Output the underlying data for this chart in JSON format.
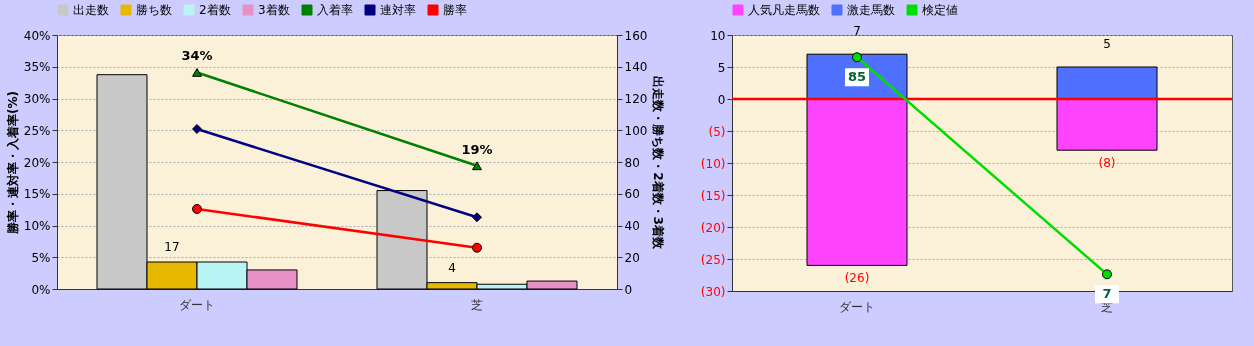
{
  "chart_data": [
    {
      "type": "bar",
      "categories": [
        "ダート",
        "芝"
      ],
      "ylabel": "勝率・連対率・入着率(%)",
      "y2label": "出走数・勝ち数・2着数・3着数",
      "ylim": [
        0,
        40
      ],
      "yticks": [
        {
          "value": 0,
          "label": "0%"
        },
        {
          "value": 5,
          "label": "5%"
        },
        {
          "value": 10,
          "label": "10%"
        },
        {
          "value": 15,
          "label": "15%"
        },
        {
          "value": 20,
          "label": "20%"
        },
        {
          "value": 25,
          "label": "25%"
        },
        {
          "value": 30,
          "label": "30%"
        },
        {
          "value": 35,
          "label": "35%"
        },
        {
          "value": 40,
          "label": "40%"
        }
      ],
      "y2lim": [
        0,
        160
      ],
      "y2ticks": [
        0,
        20,
        40,
        60,
        80,
        100,
        120,
        140,
        160
      ],
      "grid": "y",
      "legend": "top",
      "series": [
        {
          "name": "出走数",
          "color": "#c8c8c8",
          "axis": "y2",
          "values": [
            135,
            62
          ]
        },
        {
          "name": "勝ち数",
          "color": "#e6b800",
          "axis": "y2",
          "values": [
            17,
            4
          ],
          "value_labels": [
            "17",
            "4"
          ]
        },
        {
          "name": "2着数",
          "color": "#b8f4f4",
          "axis": "y2",
          "values": [
            17,
            3
          ]
        },
        {
          "name": "3着数",
          "color": "#e890c8",
          "axis": "y2",
          "values": [
            12,
            5
          ]
        },
        {
          "name": "入着率",
          "type": "line",
          "color": "#008000",
          "marker": "triangle",
          "values": [
            34.1,
            19.4
          ],
          "value_labels": [
            "34%",
            "19%"
          ]
        },
        {
          "name": "連対率",
          "type": "line",
          "color": "#000080",
          "marker": "diamond",
          "values": [
            25.2,
            11.3
          ]
        },
        {
          "name": "勝率",
          "type": "line",
          "color": "#ff0000",
          "marker": "circle",
          "values": [
            12.6,
            6.5
          ]
        }
      ]
    },
    {
      "type": "bar",
      "stacked": true,
      "categories": [
        "ダート",
        "芝"
      ],
      "ylim": [
        -30,
        10
      ],
      "yticks": [
        10,
        5,
        0,
        {
          "value": -5,
          "label": "(5)"
        },
        {
          "value": -10,
          "label": "(10)"
        },
        {
          "value": -15,
          "label": "(15)"
        },
        {
          "value": -20,
          "label": "(20)"
        },
        {
          "value": -25,
          "label": "(25)"
        },
        {
          "value": -30,
          "label": "(30)"
        }
      ],
      "y2lim": [
        1,
        93
      ],
      "grid": "y",
      "legend": "top",
      "ref_lines": [
        {
          "axis": "y",
          "value": 0,
          "color": "#ff0000"
        }
      ],
      "series": [
        {
          "name": "人気凡走馬数",
          "color": "#ff44ff",
          "values": [
            -26,
            -8
          ],
          "value_labels": [
            "(26)",
            "(8)"
          ]
        },
        {
          "name": "激走馬数",
          "color": "#5070ff",
          "values": [
            7,
            5
          ],
          "value_labels": [
            "7",
            "5"
          ]
        },
        {
          "name": "検定値",
          "type": "line",
          "axis": "y2",
          "color": "#00dd00",
          "marker": "circle",
          "values": [
            85,
            7
          ],
          "value_labels": [
            "85",
            "7"
          ]
        }
      ]
    }
  ]
}
